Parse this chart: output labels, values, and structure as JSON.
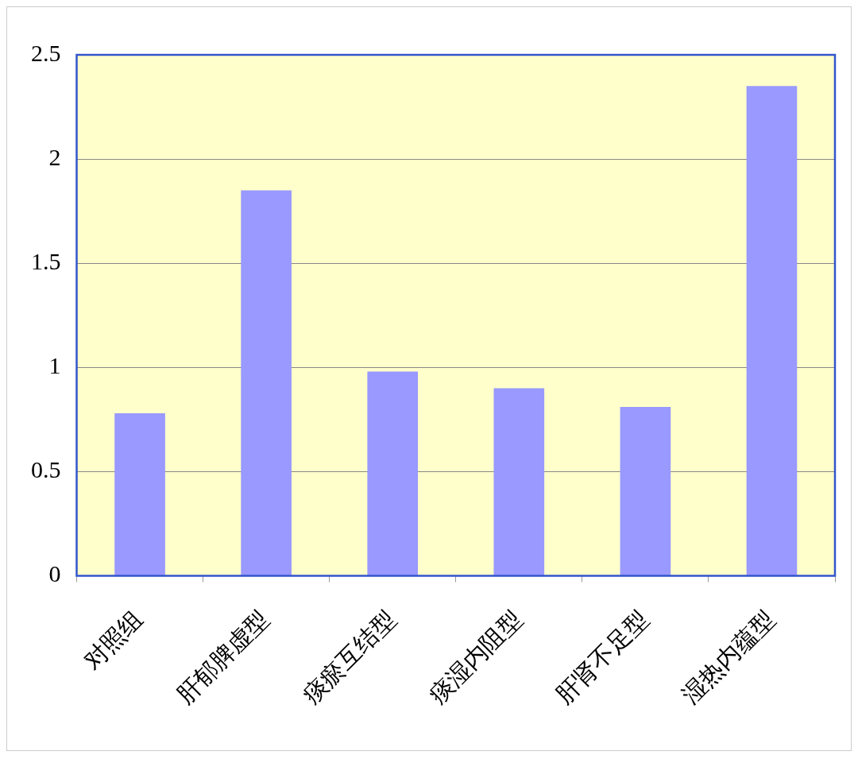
{
  "chart_data": {
    "type": "bar",
    "categories": [
      "对照组",
      "肝郁脾虚型",
      "痰瘀互结型",
      "痰湿内阻型",
      "肝肾不足型",
      "湿热内蕴型"
    ],
    "values": [
      0.78,
      1.85,
      0.98,
      0.9,
      0.81,
      2.35
    ],
    "color": "#9999ff",
    "ylim": [
      0,
      2.5
    ],
    "yticks": [
      0,
      0.5,
      1,
      1.5,
      2,
      2.5
    ],
    "grid": "y",
    "legend": false
  }
}
